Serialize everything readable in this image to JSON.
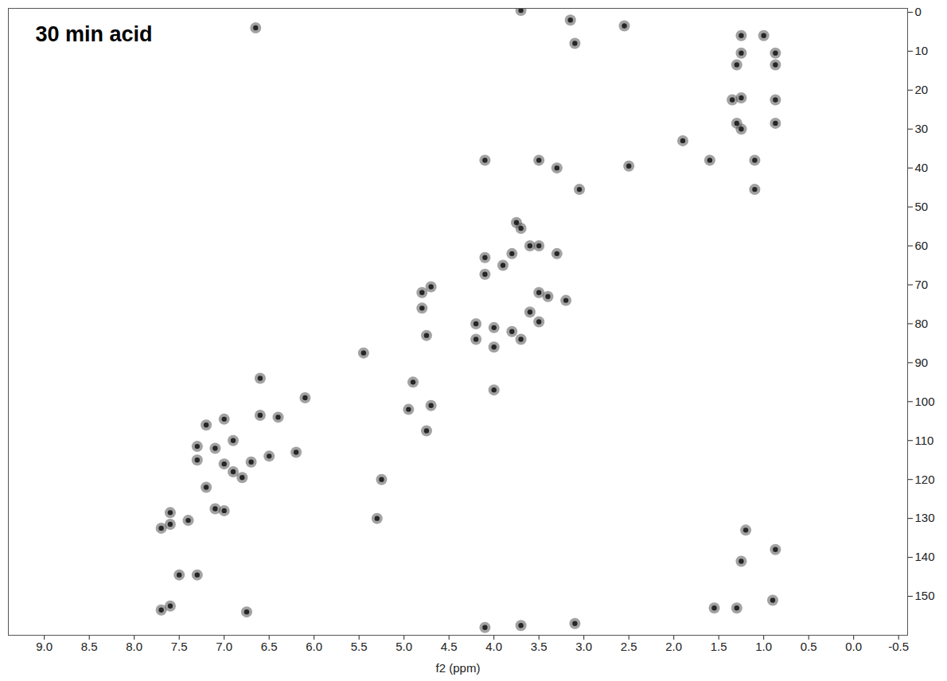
{
  "chart_data": {
    "type": "scatter",
    "title": "30 min acid",
    "xlabel": "f2 (ppm)",
    "color": "#555555",
    "marker": "circle",
    "grid": false,
    "xlim": [
      9.4,
      -0.6
    ],
    "ylim": [
      -1,
      160
    ],
    "xticks": [
      {
        "value": 9.0,
        "label": "9.0"
      },
      {
        "value": 8.5,
        "label": "8.5"
      },
      {
        "value": 8.0,
        "label": "8.0"
      },
      {
        "value": 7.5,
        "label": "7.5"
      },
      {
        "value": 7.0,
        "label": "7.0"
      },
      {
        "value": 6.5,
        "label": "6.5"
      },
      {
        "value": 6.0,
        "label": "6.0"
      },
      {
        "value": 5.5,
        "label": "5.5"
      },
      {
        "value": 5.0,
        "label": "5.0"
      },
      {
        "value": 4.5,
        "label": "4.5"
      },
      {
        "value": 4.0,
        "label": "4.0"
      },
      {
        "value": 3.5,
        "label": "3.5"
      },
      {
        "value": 3.0,
        "label": "3.0"
      },
      {
        "value": 2.5,
        "label": "2.5"
      },
      {
        "value": 2.0,
        "label": "2.0"
      },
      {
        "value": 1.5,
        "label": "1.5"
      },
      {
        "value": 1.0,
        "label": "1.0"
      },
      {
        "value": 0.5,
        "label": "0.5"
      },
      {
        "value": 0.0,
        "label": "0.0"
      },
      {
        "value": -0.5,
        "label": "-0.5"
      }
    ],
    "yticks": [
      0,
      10,
      20,
      30,
      40,
      50,
      60,
      70,
      80,
      90,
      100,
      110,
      120,
      130,
      140,
      150
    ],
    "x": [
      0.87,
      0.87,
      1.25,
      1.3,
      1.0,
      1.25,
      1.35,
      1.25,
      0.87,
      1.3,
      1.25,
      0.87,
      1.6,
      2.5,
      1.9,
      1.1,
      3.05,
      3.7,
      3.75,
      4.1,
      3.5,
      3.3,
      3.5,
      3.8,
      4.1,
      3.6,
      4.1,
      3.9,
      3.3,
      4.8,
      4.7,
      3.5,
      3.4,
      3.2,
      3.6,
      3.5,
      4.2,
      4.0,
      3.8,
      4.2,
      4.0,
      3.7,
      5.45,
      4.75,
      4.8,
      4.95,
      4.7,
      4.75,
      4.9,
      4.0,
      6.6,
      6.4,
      7.0,
      7.2,
      6.9,
      7.1,
      7.3,
      6.7,
      6.5,
      6.2,
      6.9,
      6.8,
      7.3,
      7.0,
      7.2,
      7.6,
      7.6,
      7.4,
      7.7,
      7.1,
      7.0,
      7.5,
      7.3,
      7.6,
      7.7,
      6.75,
      6.6,
      6.1,
      6.65,
      5.25,
      5.3,
      3.7,
      3.15,
      3.1,
      2.55,
      1.1,
      1.55,
      1.3,
      0.9,
      0.87,
      1.25,
      1.2,
      3.7,
      3.1,
      4.1
    ],
    "values": [
      10.5,
      13.5,
      10.5,
      13.5,
      6,
      6,
      22.5,
      22,
      22.5,
      28.5,
      30,
      28.5,
      38,
      39.5,
      33,
      38,
      45.5,
      55.5,
      54,
      38,
      38,
      40,
      60,
      62,
      63,
      60,
      67.3,
      65,
      62,
      72,
      70.5,
      72,
      73,
      74,
      77,
      79.5,
      80,
      81,
      82,
      84,
      86,
      84,
      87.5,
      83,
      76,
      102,
      101,
      107.5,
      95,
      97,
      103.5,
      104,
      104.5,
      106,
      110,
      112,
      111.5,
      115.5,
      114,
      113,
      118,
      119.5,
      115,
      116,
      122,
      128.5,
      131.5,
      130.5,
      132.5,
      127.5,
      128,
      144.5,
      144.5,
      152.5,
      153.5,
      154,
      94,
      99,
      4,
      120,
      130,
      -0.5,
      2,
      8,
      3.5,
      45.5,
      153,
      153,
      151,
      138,
      141,
      133,
      157.5,
      157,
      158
    ]
  }
}
